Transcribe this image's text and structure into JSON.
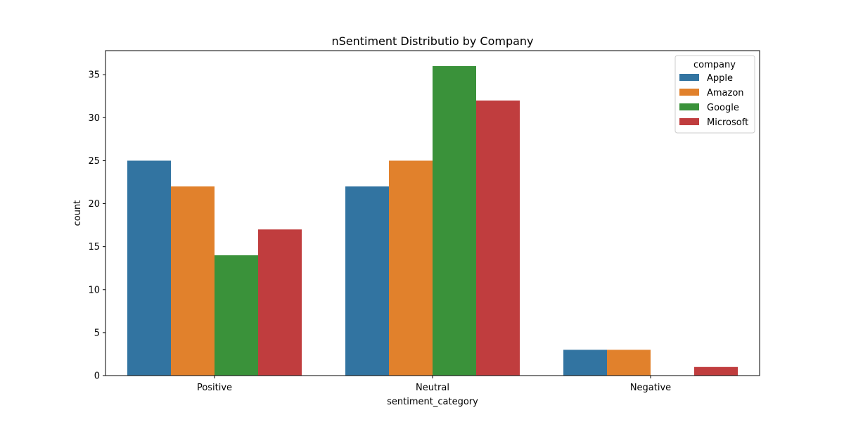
{
  "chart_data": {
    "type": "bar",
    "title": "nSentiment Distributio by Company",
    "xlabel": "sentiment_category",
    "ylabel": "count",
    "categories": [
      "Positive",
      "Neutral",
      "Negative"
    ],
    "ylim": [
      0,
      37.8
    ],
    "yticks": [
      0,
      5,
      10,
      15,
      20,
      25,
      30,
      35
    ],
    "grid": false,
    "legend": {
      "title": "company",
      "position": "top-right"
    },
    "series": [
      {
        "name": "Apple",
        "color": "#3274a1",
        "values": [
          25,
          22,
          3
        ]
      },
      {
        "name": "Amazon",
        "color": "#e1812c",
        "values": [
          22,
          25,
          3
        ]
      },
      {
        "name": "Google",
        "color": "#3a923a",
        "values": [
          14,
          36,
          0
        ]
      },
      {
        "name": "Microsoft",
        "color": "#c03d3e",
        "values": [
          17,
          32,
          1
        ]
      }
    ]
  }
}
